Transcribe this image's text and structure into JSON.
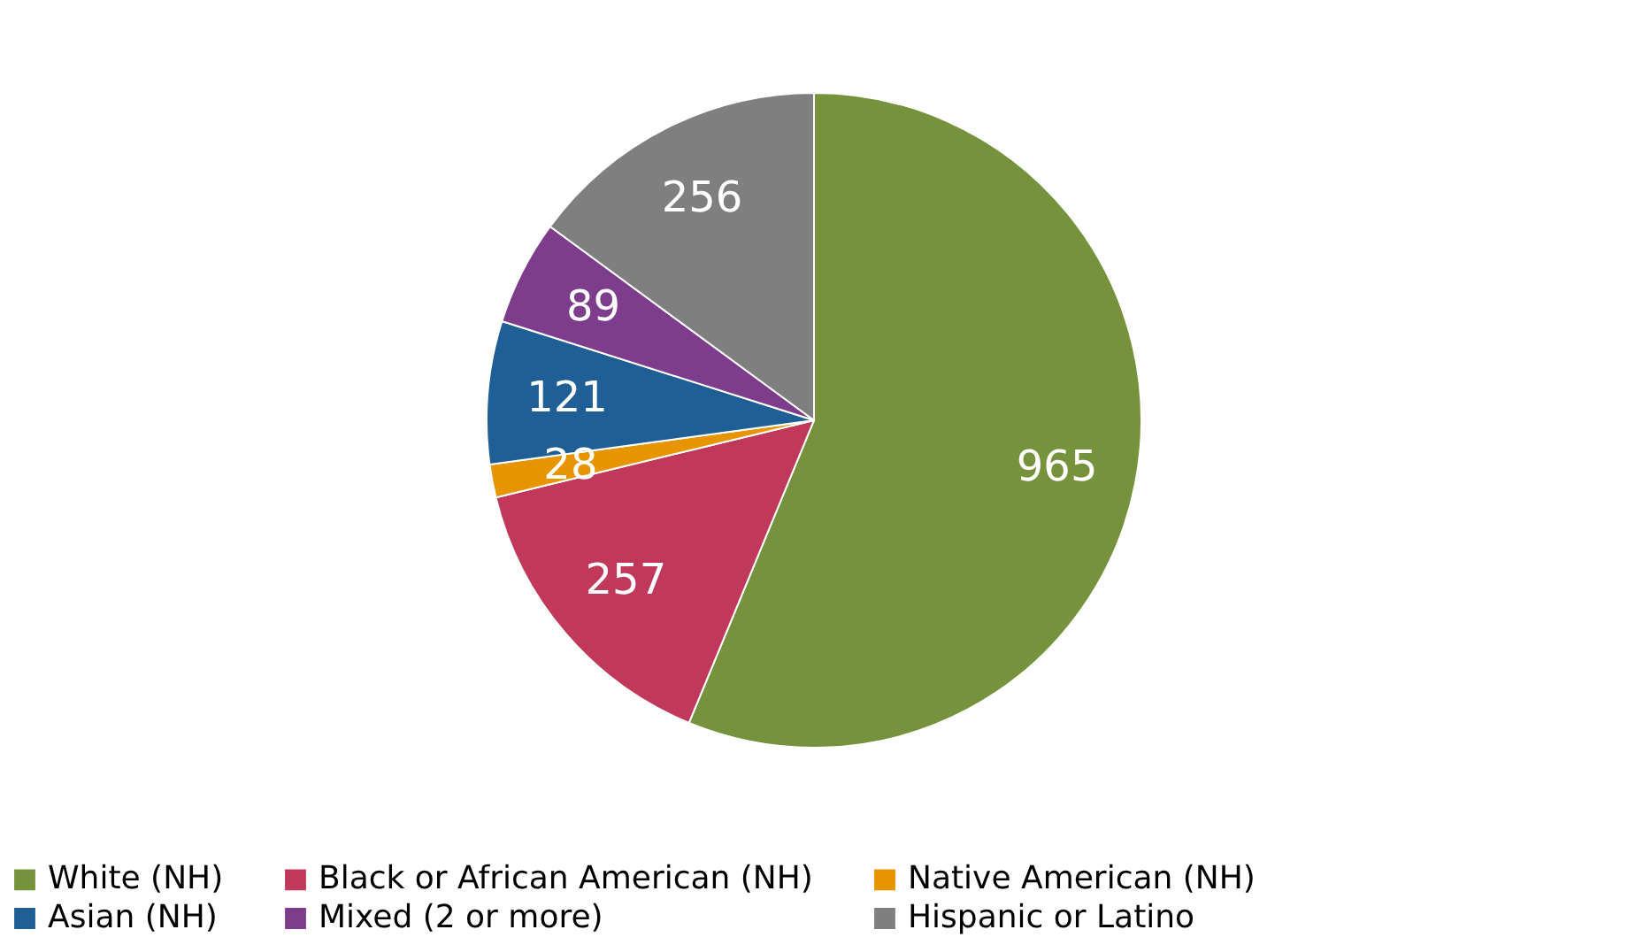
{
  "chart_data": {
    "type": "pie",
    "categories": [
      "White (NH)",
      "Black or African American (NH)",
      "Native American (NH)",
      "Asian (NH)",
      "Mixed (2 or more)",
      "Hispanic or Latino"
    ],
    "values": [
      965,
      257,
      28,
      121,
      89,
      256
    ],
    "colors": [
      "#76923c",
      "#c0395a",
      "#e69500",
      "#1f5f96",
      "#7d3c8c",
      "#7f7f7f"
    ],
    "data_labels": true,
    "legend": "bottom"
  }
}
